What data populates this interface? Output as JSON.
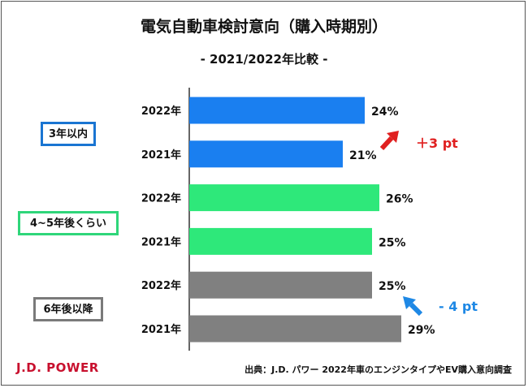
{
  "title": "電気自動車検討意向（購入時期別）",
  "subtitle": "- 2021/2022年比較 -",
  "brand": "J.D. POWER",
  "source": "出典：J.D. パワー 2022年車のエンジンタイプやEV購入意向調査",
  "groups": [
    {
      "label": "3年以内",
      "color": "#1a75d2"
    },
    {
      "label": "4~5年後くらい",
      "color": "#2fd67a"
    },
    {
      "label": "6年後以降",
      "color": "#7a7a7a"
    }
  ],
  "annotations": [
    {
      "text": "＋3 pt",
      "color": "#e02020"
    },
    {
      "text": "- 4 pt",
      "color": "#1e88e5"
    }
  ],
  "chart_data": {
    "type": "bar",
    "orientation": "horizontal",
    "title": "電気自動車検討意向（購入時期別）",
    "subtitle": "- 2021/2022年比較 -",
    "categories": [
      "2022年",
      "2021年",
      "2022年",
      "2021年",
      "2022年",
      "2021年"
    ],
    "values": [
      24,
      21,
      26,
      25,
      25,
      29
    ],
    "value_labels": [
      "24%",
      "21%",
      "26%",
      "25%",
      "25%",
      "29%"
    ],
    "bar_colors": [
      "#1a7ff0",
      "#1a7ff0",
      "#2ee87a",
      "#2ee87a",
      "#808080",
      "#808080"
    ],
    "groups": [
      "3年以内",
      "3年以内",
      "4~5年後くらい",
      "4~5年後くらい",
      "6年後以降",
      "6年後以降"
    ],
    "xlim": [
      0,
      30
    ],
    "unit": "%"
  }
}
